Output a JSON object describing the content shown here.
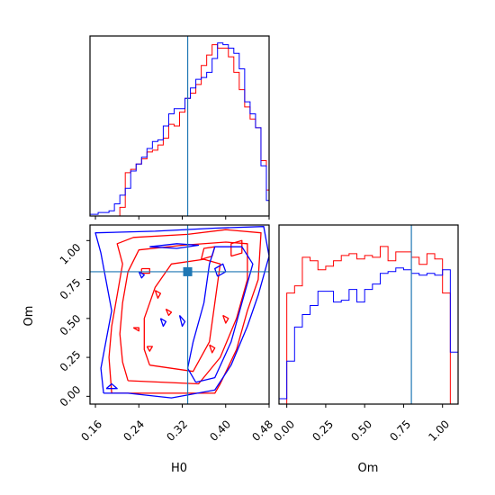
{
  "colors": {
    "series_a": "#ff0000",
    "series_b": "#0000ff",
    "truth": "#1f77b4",
    "axes": "#000000"
  },
  "chart_data": [
    {
      "panel": "H0 marginal",
      "type": "histogram",
      "x_range": [
        0.15,
        0.48
      ],
      "truth": 0.33,
      "series": [
        {
          "color": "red",
          "bin_edges_start": 0.165,
          "bin_width": 0.01,
          "values": [
            0.0,
            0.0,
            0.0,
            0.0,
            0.05,
            0.25,
            0.27,
            0.3,
            0.33,
            0.37,
            0.38,
            0.41,
            0.45,
            0.53,
            0.52,
            0.6,
            0.68,
            0.71,
            0.76,
            0.87,
            0.93,
            0.99,
            0.97,
            0.97,
            0.92,
            0.83,
            0.73,
            0.63,
            0.56,
            0.51,
            0.32,
            0.15,
            0.01
          ]
        },
        {
          "color": "blue",
          "bin_edges_start": 0.145,
          "bin_width": 0.01,
          "values": [
            0.01,
            0.01,
            0.02,
            0.02,
            0.03,
            0.07,
            0.12,
            0.16,
            0.26,
            0.3,
            0.34,
            0.39,
            0.43,
            0.44,
            0.52,
            0.59,
            0.62,
            0.62,
            0.68,
            0.74,
            0.79,
            0.8,
            0.83,
            0.91,
            1.0,
            0.99,
            0.97,
            0.94,
            0.85,
            0.66,
            0.59,
            0.51,
            0.29,
            0.09,
            0.03,
            0.0
          ]
        }
      ]
    },
    {
      "panel": "H0 vs Om joint",
      "type": "contour",
      "x_range": [
        0.15,
        0.48
      ],
      "y_range": [
        -0.05,
        1.1
      ],
      "truth": {
        "x": 0.33,
        "y": 0.8
      },
      "red_contours": [
        [
          [
            0.19,
            0.02
          ],
          [
            0.38,
            0.02
          ],
          [
            0.39,
            0.08
          ],
          [
            0.42,
            0.3
          ],
          [
            0.44,
            0.55
          ],
          [
            0.46,
            0.75
          ],
          [
            0.465,
            1.05
          ],
          [
            0.4,
            1.07
          ],
          [
            0.33,
            1.04
          ],
          [
            0.23,
            1.02
          ],
          [
            0.2,
            0.98
          ],
          [
            0.21,
            0.85
          ],
          [
            0.2,
            0.65
          ],
          [
            0.19,
            0.45
          ],
          [
            0.185,
            0.25
          ],
          [
            0.19,
            0.02
          ]
        ],
        [
          [
            0.22,
            0.1
          ],
          [
            0.35,
            0.08
          ],
          [
            0.39,
            0.25
          ],
          [
            0.42,
            0.5
          ],
          [
            0.44,
            0.75
          ],
          [
            0.44,
            0.98
          ],
          [
            0.4,
            0.99
          ],
          [
            0.32,
            0.97
          ],
          [
            0.24,
            0.94
          ],
          [
            0.22,
            0.8
          ],
          [
            0.21,
            0.6
          ],
          [
            0.205,
            0.4
          ],
          [
            0.21,
            0.22
          ],
          [
            0.22,
            0.1
          ]
        ],
        [
          [
            0.26,
            0.2
          ],
          [
            0.34,
            0.16
          ],
          [
            0.37,
            0.35
          ],
          [
            0.38,
            0.6
          ],
          [
            0.39,
            0.85
          ],
          [
            0.36,
            0.88
          ],
          [
            0.3,
            0.85
          ],
          [
            0.27,
            0.7
          ],
          [
            0.25,
            0.5
          ],
          [
            0.25,
            0.3
          ],
          [
            0.26,
            0.2
          ]
        ],
        [
          [
            0.355,
            0.88
          ],
          [
            0.375,
            0.9
          ],
          [
            0.38,
            0.96
          ],
          [
            0.36,
            0.95
          ],
          [
            0.355,
            0.88
          ]
        ],
        [
          [
            0.41,
            0.9
          ],
          [
            0.43,
            0.92
          ],
          [
            0.43,
            1.0
          ],
          [
            0.41,
            0.98
          ],
          [
            0.41,
            0.9
          ]
        ],
        [
          [
            0.245,
            0.82
          ],
          [
            0.26,
            0.82
          ],
          [
            0.26,
            0.79
          ],
          [
            0.245,
            0.79
          ],
          [
            0.245,
            0.82
          ]
        ],
        [
          [
            0.27,
            0.68
          ],
          [
            0.28,
            0.66
          ],
          [
            0.275,
            0.63
          ],
          [
            0.27,
            0.68
          ]
        ],
        [
          [
            0.29,
            0.56
          ],
          [
            0.3,
            0.54
          ],
          [
            0.295,
            0.52
          ],
          [
            0.29,
            0.56
          ]
        ],
        [
          [
            0.23,
            0.44
          ],
          [
            0.24,
            0.44
          ],
          [
            0.24,
            0.42
          ],
          [
            0.23,
            0.44
          ]
        ],
        [
          [
            0.255,
            0.32
          ],
          [
            0.265,
            0.32
          ],
          [
            0.26,
            0.29
          ],
          [
            0.255,
            0.32
          ]
        ],
        [
          [
            0.37,
            0.33
          ],
          [
            0.38,
            0.31
          ],
          [
            0.375,
            0.28
          ],
          [
            0.37,
            0.33
          ]
        ],
        [
          [
            0.395,
            0.52
          ],
          [
            0.405,
            0.5
          ],
          [
            0.4,
            0.47
          ],
          [
            0.395,
            0.52
          ]
        ]
      ],
      "blue_contours": [
        [
          [
            0.175,
            0.02
          ],
          [
            0.17,
            0.18
          ],
          [
            0.19,
            0.55
          ],
          [
            0.17,
            0.92
          ],
          [
            0.16,
            1.05
          ],
          [
            0.27,
            1.06
          ],
          [
            0.38,
            1.08
          ],
          [
            0.47,
            1.09
          ],
          [
            0.48,
            0.9
          ],
          [
            0.46,
            0.65
          ],
          [
            0.44,
            0.45
          ],
          [
            0.41,
            0.2
          ],
          [
            0.38,
            0.04
          ],
          [
            0.3,
            -0.01
          ],
          [
            0.22,
            0.02
          ],
          [
            0.175,
            0.02
          ]
        ],
        [
          [
            0.345,
            0.09
          ],
          [
            0.38,
            0.12
          ],
          [
            0.41,
            0.35
          ],
          [
            0.43,
            0.6
          ],
          [
            0.45,
            0.85
          ],
          [
            0.43,
            0.96
          ],
          [
            0.38,
            0.96
          ],
          [
            0.37,
            0.85
          ],
          [
            0.36,
            0.6
          ],
          [
            0.34,
            0.35
          ],
          [
            0.33,
            0.18
          ],
          [
            0.345,
            0.09
          ]
        ],
        [
          [
            0.18,
            0.05
          ],
          [
            0.2,
            0.05
          ],
          [
            0.19,
            0.08
          ],
          [
            0.18,
            0.05
          ]
        ],
        [
          [
            0.26,
            0.96
          ],
          [
            0.31,
            0.98
          ],
          [
            0.35,
            0.97
          ],
          [
            0.31,
            0.95
          ],
          [
            0.26,
            0.96
          ]
        ],
        [
          [
            0.385,
            0.77
          ],
          [
            0.4,
            0.8
          ],
          [
            0.395,
            0.85
          ],
          [
            0.38,
            0.82
          ],
          [
            0.385,
            0.77
          ]
        ],
        [
          [
            0.28,
            0.5
          ],
          [
            0.29,
            0.48
          ],
          [
            0.285,
            0.45
          ],
          [
            0.28,
            0.5
          ]
        ],
        [
          [
            0.24,
            0.8
          ],
          [
            0.25,
            0.78
          ],
          [
            0.245,
            0.76
          ],
          [
            0.24,
            0.8
          ]
        ],
        [
          [
            0.315,
            0.52
          ],
          [
            0.325,
            0.48
          ],
          [
            0.32,
            0.45
          ],
          [
            0.315,
            0.52
          ]
        ]
      ]
    },
    {
      "panel": "Om marginal",
      "type": "histogram",
      "x_range": [
        -0.05,
        1.1
      ],
      "truth": 0.8,
      "series": [
        {
          "color": "red",
          "bin_edges_start": 0.0,
          "bin_width": 0.05,
          "values": [
            0.62,
            0.66,
            0.82,
            0.8,
            0.75,
            0.77,
            0.8,
            0.83,
            0.84,
            0.81,
            0.83,
            0.82,
            0.88,
            0.8,
            0.85,
            0.85,
            0.82,
            0.78,
            0.84,
            0.81,
            0.62
          ]
        },
        {
          "color": "blue",
          "bin_edges_start": -0.05,
          "bin_width": 0.05,
          "values": [
            0.03,
            0.24,
            0.43,
            0.5,
            0.55,
            0.63,
            0.63,
            0.57,
            0.58,
            0.64,
            0.57,
            0.64,
            0.67,
            0.73,
            0.74,
            0.76,
            0.75,
            0.73,
            0.72,
            0.73,
            0.72,
            0.75,
            0.29,
            0.04
          ]
        }
      ]
    }
  ],
  "axes": {
    "joint": {
      "xlabel": "H0",
      "ylabel": "Om",
      "xticks": [
        "0.16",
        "0.24",
        "0.32",
        "0.40",
        "0.48"
      ],
      "yticks": [
        "0.00",
        "0.25",
        "0.50",
        "0.75",
        "1.00"
      ]
    },
    "om_marginal": {
      "xlabel": "Om",
      "xticks": [
        "0.00",
        "0.25",
        "0.50",
        "0.75",
        "1.00"
      ]
    }
  }
}
